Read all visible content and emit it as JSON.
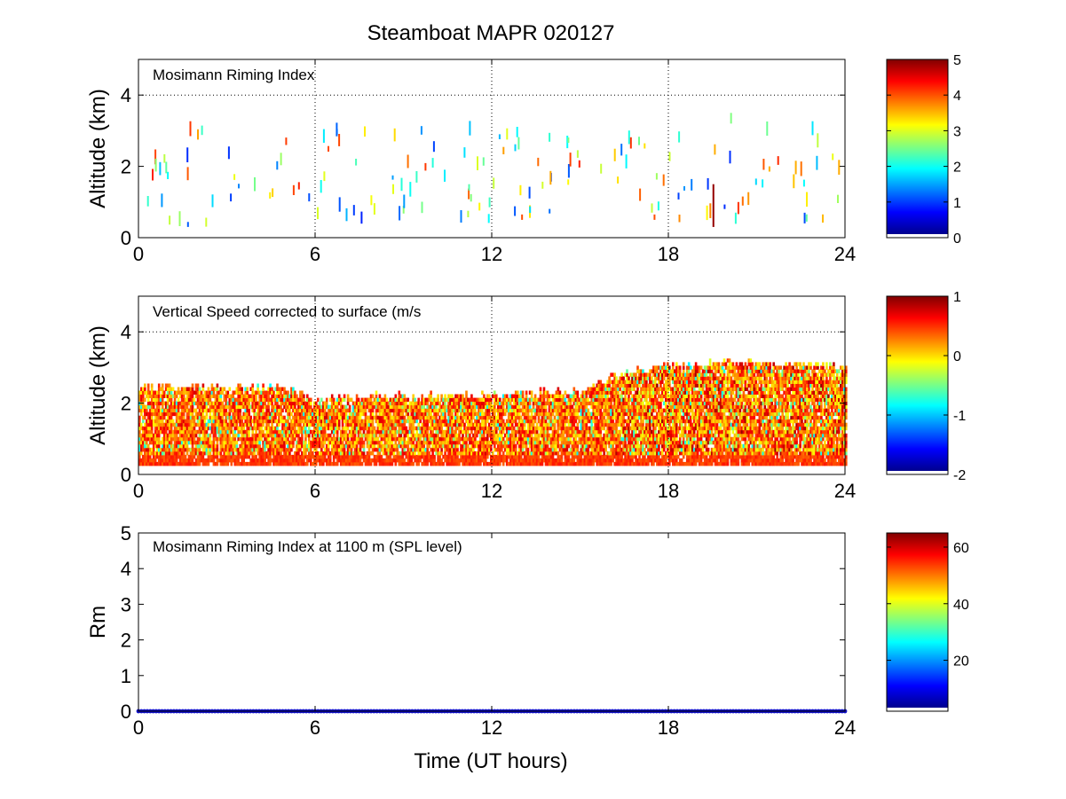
{
  "figure_title": "Steamboat MAPR 020127",
  "xlabel": "Time (UT hours)",
  "colors": {
    "axis": "#000000",
    "background": "#ffffff",
    "rm_series": "#1010c8"
  },
  "chart_data": [
    {
      "type": "heatmap",
      "annotation": "Mosimann Riming Index",
      "ylabel": "Altitude (km)",
      "xlim": [
        0,
        24
      ],
      "ylim": [
        0,
        5
      ],
      "xticks": [
        "0",
        "6",
        "12",
        "18",
        "24"
      ],
      "yticks": [
        "0",
        "2",
        "4"
      ],
      "grid": "dotted",
      "colorbar": {
        "range": [
          0,
          5
        ],
        "ticks": [
          "0",
          "1",
          "2",
          "3",
          "4",
          "5"
        ]
      },
      "seed": 11,
      "density": "sparse"
    },
    {
      "type": "heatmap",
      "annotation": "Vertical Speed corrected to surface (m/s",
      "ylabel": "Altitude (km)",
      "xlim": [
        0,
        24
      ],
      "ylim": [
        0,
        5
      ],
      "xticks": [
        "0",
        "6",
        "12",
        "18",
        "24"
      ],
      "yticks": [
        "0",
        "2",
        "4"
      ],
      "grid": "dotted",
      "colorbar": {
        "range": [
          -2,
          1
        ],
        "ticks": [
          "-2",
          "-1",
          "0",
          "1"
        ]
      },
      "seed": 29,
      "density": "dense",
      "echo_top_km": [
        [
          0,
          2.4
        ],
        [
          4.5,
          2.4
        ],
        [
          6,
          2.1
        ],
        [
          12,
          2.2
        ],
        [
          15,
          2.3
        ],
        [
          16,
          2.7
        ],
        [
          18,
          3.0
        ],
        [
          20,
          3.1
        ],
        [
          24,
          3.0
        ]
      ],
      "echo_base_km": 0.25
    },
    {
      "type": "scatter",
      "annotation": "Mosimann Riming Index at 1100 m (SPL level)",
      "ylabel": "Rm",
      "xlim": [
        0,
        24
      ],
      "ylim": [
        0,
        5
      ],
      "xticks": [
        "0",
        "6",
        "12",
        "18",
        "24"
      ],
      "yticks": [
        "0",
        "1",
        "2",
        "3",
        "4",
        "5"
      ],
      "grid": "none",
      "colorbar": {
        "range": [
          2,
          65
        ],
        "ticks": [
          "20",
          "40",
          "60"
        ]
      },
      "series": [
        {
          "name": "Rm at 1100 m",
          "x_range": [
            0,
            24
          ],
          "x_step": 0.1,
          "y": 0
        }
      ]
    }
  ]
}
